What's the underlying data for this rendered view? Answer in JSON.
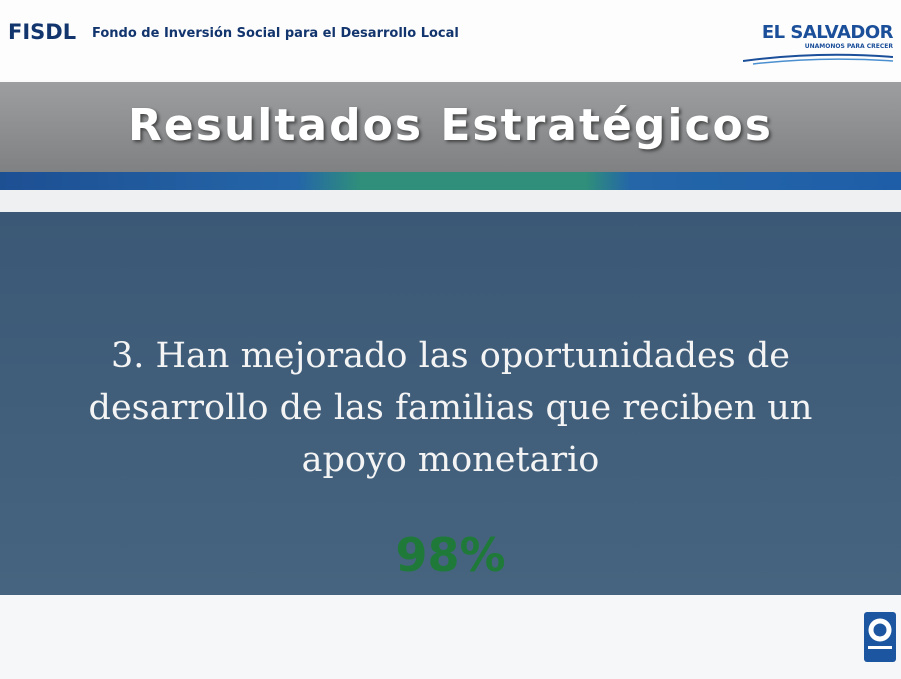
{
  "header": {
    "brand": "FISDL",
    "brand_full": "Fondo de Inversión Social para el Desarrollo Local",
    "logo": "EL SALVADOR",
    "logo_tagline": "UNAMONOS PARA CRECER"
  },
  "title": "Resultados Estratégicos",
  "body": {
    "statement_lines": [
      "3. Han mejorado las oportunidades de",
      "desarrollo de las familias que reciben un",
      "apoyo monetario"
    ],
    "figure": "98%"
  }
}
